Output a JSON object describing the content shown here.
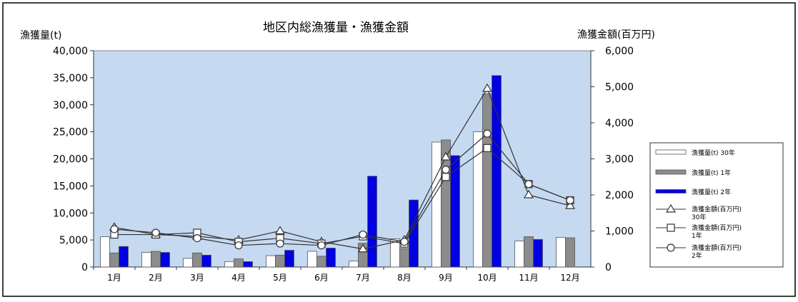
{
  "chart_data": {
    "type": "bar",
    "title": "地区内総漁獲量・漁獲金額",
    "ylabel": "漁獲量(t)",
    "y2label": "漁獲金額(百万円)",
    "ylim": [
      0,
      40000
    ],
    "y2lim": [
      0,
      6000
    ],
    "yticks": [
      "0",
      "5,000",
      "10,000",
      "15,000",
      "20,000",
      "25,000",
      "30,000",
      "35,000",
      "40,000"
    ],
    "y2ticks": [
      "0",
      "1,000",
      "2,000",
      "3,000",
      "4,000",
      "5,000",
      "6,000"
    ],
    "categories": [
      "1月",
      "2月",
      "3月",
      "4月",
      "5月",
      "6月",
      "7月",
      "8月",
      "9月",
      "10月",
      "11月",
      "12月"
    ],
    "grid": false,
    "legend_position": "right",
    "colors": {
      "plot_bg": "#c5d9f1",
      "bar_30": "#ffffff",
      "bar_1": "#8c8c8c",
      "bar_2": "#0000e0",
      "line": "#333333"
    },
    "series": [
      {
        "name": "漁獲量(t) 30年",
        "type": "bar",
        "axis": "left",
        "values": [
          5600,
          2700,
          1600,
          1000,
          2100,
          2900,
          1100,
          5200,
          23100,
          25000,
          4800,
          5500
        ]
      },
      {
        "name": "漁獲量(t) 1年",
        "type": "bar",
        "axis": "left",
        "values": [
          2600,
          2900,
          2600,
          1500,
          2200,
          2000,
          4400,
          3400,
          23500,
          32000,
          5600,
          5400
        ]
      },
      {
        "name": "漁獲量(t) 2年",
        "type": "bar",
        "axis": "left",
        "values": [
          3800,
          2700,
          2200,
          1000,
          3100,
          3500,
          16800,
          12400,
          20600,
          35400,
          5100,
          null
        ]
      },
      {
        "name": "漁獲金額(百万円) 30年",
        "type": "line",
        "axis": "right",
        "marker": "triangle",
        "values": [
          1100,
          900,
          850,
          750,
          1000,
          700,
          500,
          750,
          3050,
          4950,
          2000,
          1700
        ]
      },
      {
        "name": "漁獲金額(百万円) 1年",
        "type": "line",
        "axis": "right",
        "marker": "square",
        "values": [
          900,
          900,
          950,
          700,
          800,
          650,
          850,
          650,
          2500,
          3300,
          2300,
          1850
        ]
      },
      {
        "name": "漁獲金額(百万円) 2年",
        "type": "line",
        "axis": "right",
        "marker": "circle",
        "values": [
          1050,
          950,
          800,
          600,
          650,
          600,
          900,
          700,
          2700,
          3700,
          2300,
          1850
        ]
      }
    ],
    "legend": [
      {
        "label": "漁獲量(t) 30年",
        "label2": ""
      },
      {
        "label": "漁獲量(t) 1年",
        "label2": ""
      },
      {
        "label": "漁獲量(t) 2年",
        "label2": ""
      },
      {
        "label": "漁獲金額(百万円)",
        "label2": "30年"
      },
      {
        "label": "漁獲金額(百万円)",
        "label2": "1年"
      },
      {
        "label": "漁獲金額(百万円)",
        "label2": "2年"
      }
    ]
  }
}
